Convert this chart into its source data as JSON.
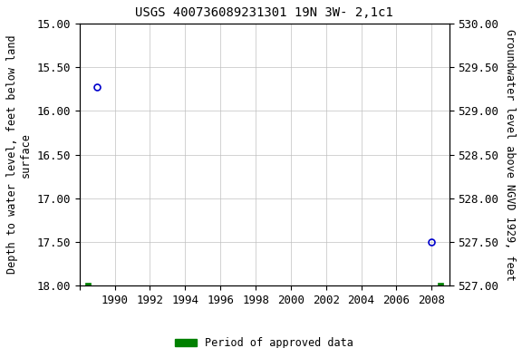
{
  "title": "USGS 400736089231301 19N 3W- 2,1c1",
  "ylabel_left": "Depth to water level, feet below land\nsurface",
  "ylabel_right": "Groundwater level above NGVD 1929, feet",
  "ylim_left": [
    15.0,
    18.0
  ],
  "ylim_right": [
    527.0,
    530.0
  ],
  "xlim": [
    1988,
    2009
  ],
  "xticks": [
    1988,
    1990,
    1992,
    1994,
    1996,
    1998,
    2000,
    2002,
    2004,
    2006,
    2008
  ],
  "xtick_labels": [
    "",
    "1990",
    "1992",
    "1994",
    "1996",
    "1998",
    "2000",
    "2002",
    "2004",
    "2006",
    "2008"
  ],
  "yticks_left": [
    15.0,
    15.5,
    16.0,
    16.5,
    17.0,
    17.5,
    18.0
  ],
  "yticks_right": [
    527.0,
    527.5,
    528.0,
    528.5,
    529.0,
    529.5,
    530.0
  ],
  "ytick_labels_right": [
    "527.00",
    "527.50",
    "528.00",
    "528.50",
    "529.00",
    "529.50",
    "530.00"
  ],
  "blue_points_x": [
    1989.0,
    2008.0
  ],
  "blue_points_y": [
    15.72,
    17.5
  ],
  "green_points_x": [
    1988.5,
    2008.5
  ],
  "green_points_y": [
    18.0,
    18.0
  ],
  "blue_color": "#0000cc",
  "green_color": "#008000",
  "legend_label": "Period of approved data",
  "background_color": "#ffffff",
  "grid_color": "#c0c0c0",
  "title_fontsize": 10,
  "axis_label_fontsize": 8.5,
  "tick_fontsize": 9
}
